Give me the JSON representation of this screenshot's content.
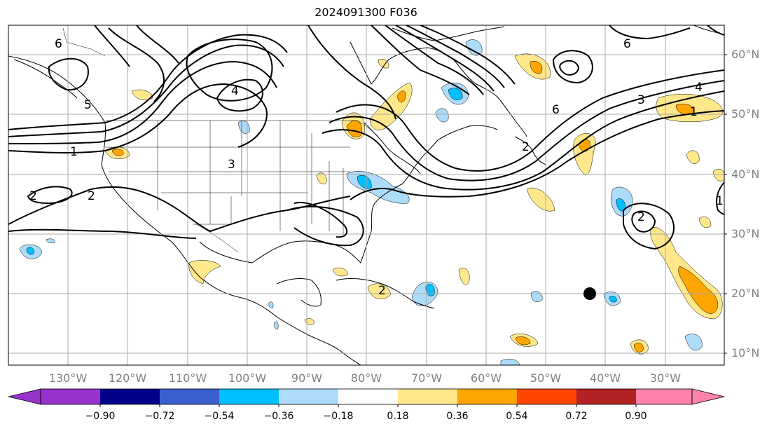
{
  "title": "2024091300 F036",
  "lat_labels": [
    "60°N",
    "50°N",
    "40°N",
    "30°N",
    "20°N",
    "10°N"
  ],
  "lat_values": [
    60,
    50,
    40,
    30,
    20,
    10
  ],
  "lon_labels": [
    "130°W",
    "120°W",
    "110°W",
    "100°W",
    "90°W",
    "80°W",
    "70°W",
    "60°W",
    "50°W",
    "40°W",
    "30°W"
  ],
  "lon_values": [
    -130,
    -120,
    -110,
    -100,
    -90,
    -80,
    -70,
    -60,
    -50,
    -40,
    -30
  ],
  "colorbar": {
    "ticks": [
      "−0.90",
      "−0.72",
      "−0.54",
      "−0.36",
      "−0.18",
      "0.18",
      "0.36",
      "0.54",
      "0.72",
      "0.90"
    ],
    "colors": [
      "#9932CC",
      "#00008B",
      "#3A5FCD",
      "#00BFFF",
      "#ADDCFA",
      "#FFFFFF",
      "#FFE88C",
      "#FFA500",
      "#FF4500",
      "#B22222",
      "#FF82AB"
    ]
  },
  "contour_labels": [
    "6",
    "5",
    "4",
    "3",
    "2",
    "1"
  ],
  "marker": {
    "name": "black-dot",
    "lon": -43,
    "lat": 20
  }
}
